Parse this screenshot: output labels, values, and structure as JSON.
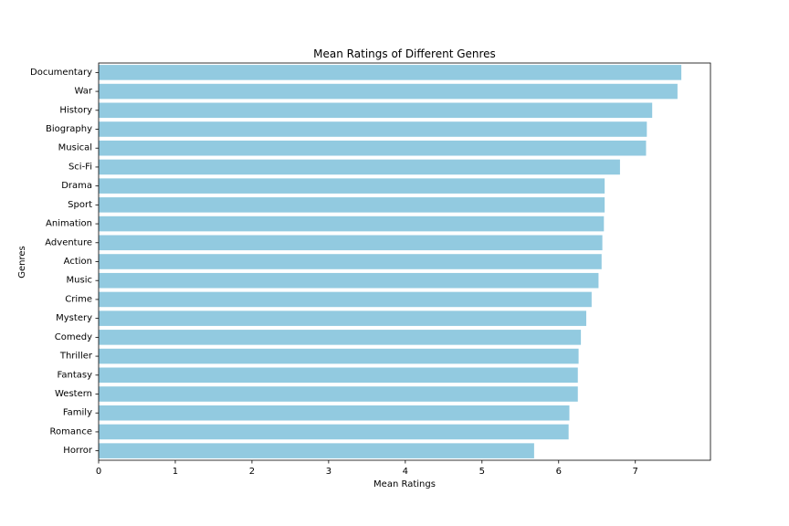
{
  "chart_data": {
    "type": "bar",
    "orientation": "horizontal",
    "title": "Mean Ratings of Different Genres",
    "xlabel": "Mean Ratings",
    "ylabel": "Genres",
    "xlim": [
      0,
      7.98
    ],
    "xticks": [
      0,
      1,
      2,
      3,
      4,
      5,
      6,
      7
    ],
    "grid": false,
    "categories": [
      "Documentary",
      "War",
      "History",
      "Biography",
      "Musical",
      "Sci-Fi",
      "Drama",
      "Sport",
      "Animation",
      "Adventure",
      "Action",
      "Music",
      "Crime",
      "Mystery",
      "Comedy",
      "Thriller",
      "Fantasy",
      "Western",
      "Family",
      "Romance",
      "Horror"
    ],
    "values": [
      7.6,
      7.55,
      7.22,
      7.15,
      7.14,
      6.8,
      6.6,
      6.6,
      6.59,
      6.57,
      6.56,
      6.52,
      6.43,
      6.36,
      6.29,
      6.26,
      6.25,
      6.25,
      6.14,
      6.13,
      5.68
    ],
    "bar_color": "#92cae0"
  }
}
